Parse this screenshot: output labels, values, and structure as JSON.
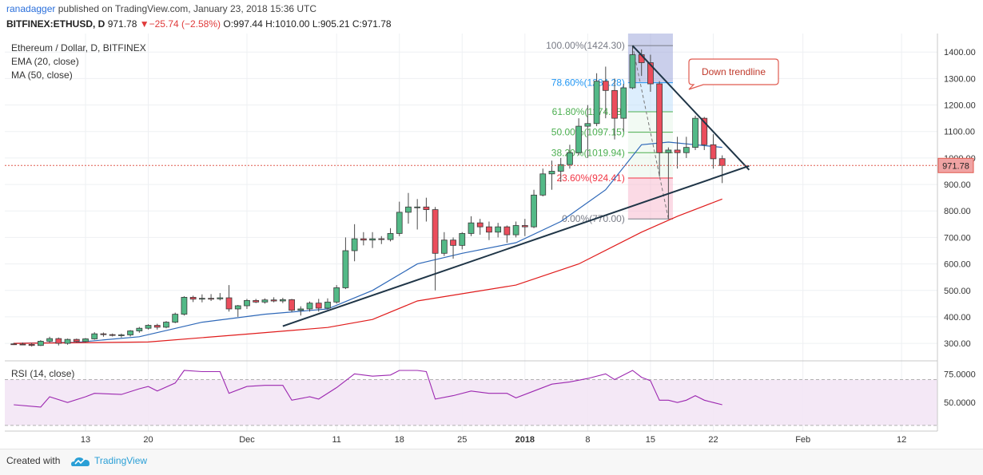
{
  "header": {
    "line1_author": "ranadagger",
    "line1_rest": " published on TradingView.com, January 23, 2018 15:36 UTC",
    "symbol": "BITFINEX:ETHUSD, D",
    "last": "971.78",
    "change_glyph": "▼",
    "change": "−25.74 (−2.58%)",
    "open_label": "O:",
    "open": "997.44",
    "high_label": "H:",
    "high": "1010.00",
    "low_label": "L:",
    "low": "905.21",
    "close_label": "C:",
    "close": "971.78"
  },
  "legend": {
    "title": "Ethereum / Dollar, D, BITFINEX",
    "ema": "EMA (20, close)",
    "ma": "MA (50, close)"
  },
  "colors": {
    "up": "#53b987",
    "down": "#eb4d5c",
    "ema": "#2e68b8",
    "ma": "#e01b1b",
    "rsi": "#9c27b0",
    "trendline": "#1f3547",
    "grid": "#eef0f3"
  },
  "chart_data": {
    "type": "candlestick",
    "title": "Ethereum / Dollar, D, BITFINEX",
    "y_ticks": [
      300,
      400,
      500,
      600,
      700,
      800,
      900,
      1000,
      1100,
      1200,
      1300,
      1400
    ],
    "y_tick_labels": [
      "300.00",
      "400.00",
      "500.00",
      "600.00",
      "700.00",
      "800.00",
      "900.00",
      "1000.00",
      "1100.00",
      "1200.00",
      "1300.00",
      "1400.00"
    ],
    "ylim": [
      240,
      1470
    ],
    "x_ticks": [
      {
        "label": "13",
        "date": "2017-11-13"
      },
      {
        "label": "20",
        "date": "2017-11-20"
      },
      {
        "label": "Dec",
        "date": "2017-12-01"
      },
      {
        "label": "11",
        "date": "2017-12-11"
      },
      {
        "label": "18",
        "date": "2017-12-18"
      },
      {
        "label": "25",
        "date": "2017-12-25"
      },
      {
        "label": "2018",
        "date": "2018-01-01"
      },
      {
        "label": "8",
        "date": "2018-01-08"
      },
      {
        "label": "15",
        "date": "2018-01-15"
      },
      {
        "label": "22",
        "date": "2018-01-22"
      },
      {
        "label": "Feb",
        "date": "2018-02-01"
      },
      {
        "label": "12",
        "date": "2018-02-12"
      }
    ],
    "x_range": [
      "2017-11-04",
      "2018-02-16"
    ],
    "candles": [
      {
        "date": "2017-11-05",
        "o": 298,
        "h": 302,
        "l": 294,
        "c": 297
      },
      {
        "date": "2017-11-06",
        "o": 297,
        "h": 303,
        "l": 293,
        "c": 296
      },
      {
        "date": "2017-11-07",
        "o": 296,
        "h": 301,
        "l": 288,
        "c": 292
      },
      {
        "date": "2017-11-08",
        "o": 292,
        "h": 312,
        "l": 290,
        "c": 308
      },
      {
        "date": "2017-11-09",
        "o": 308,
        "h": 325,
        "l": 302,
        "c": 318
      },
      {
        "date": "2017-11-10",
        "o": 318,
        "h": 322,
        "l": 292,
        "c": 300
      },
      {
        "date": "2017-11-11",
        "o": 300,
        "h": 318,
        "l": 295,
        "c": 315
      },
      {
        "date": "2017-11-12",
        "o": 315,
        "h": 318,
        "l": 303,
        "c": 307
      },
      {
        "date": "2017-11-13",
        "o": 307,
        "h": 320,
        "l": 303,
        "c": 317
      },
      {
        "date": "2017-11-14",
        "o": 317,
        "h": 342,
        "l": 314,
        "c": 336
      },
      {
        "date": "2017-11-15",
        "o": 336,
        "h": 341,
        "l": 325,
        "c": 333
      },
      {
        "date": "2017-11-16",
        "o": 333,
        "h": 337,
        "l": 326,
        "c": 331
      },
      {
        "date": "2017-11-17",
        "o": 331,
        "h": 337,
        "l": 322,
        "c": 332
      },
      {
        "date": "2017-11-18",
        "o": 332,
        "h": 350,
        "l": 326,
        "c": 347
      },
      {
        "date": "2017-11-19",
        "o": 347,
        "h": 362,
        "l": 340,
        "c": 357
      },
      {
        "date": "2017-11-20",
        "o": 357,
        "h": 372,
        "l": 352,
        "c": 368
      },
      {
        "date": "2017-11-21",
        "o": 368,
        "h": 374,
        "l": 352,
        "c": 361
      },
      {
        "date": "2017-11-22",
        "o": 361,
        "h": 384,
        "l": 357,
        "c": 380
      },
      {
        "date": "2017-11-23",
        "o": 380,
        "h": 416,
        "l": 376,
        "c": 410
      },
      {
        "date": "2017-11-24",
        "o": 410,
        "h": 478,
        "l": 405,
        "c": 474
      },
      {
        "date": "2017-11-25",
        "o": 474,
        "h": 480,
        "l": 456,
        "c": 467
      },
      {
        "date": "2017-11-26",
        "o": 467,
        "h": 485,
        "l": 455,
        "c": 470
      },
      {
        "date": "2017-11-27",
        "o": 470,
        "h": 486,
        "l": 460,
        "c": 468
      },
      {
        "date": "2017-11-28",
        "o": 468,
        "h": 490,
        "l": 462,
        "c": 472
      },
      {
        "date": "2017-11-29",
        "o": 472,
        "h": 520,
        "l": 420,
        "c": 430
      },
      {
        "date": "2017-11-30",
        "o": 430,
        "h": 445,
        "l": 400,
        "c": 442
      },
      {
        "date": "2017-12-01",
        "o": 442,
        "h": 468,
        "l": 430,
        "c": 462
      },
      {
        "date": "2017-12-02",
        "o": 462,
        "h": 468,
        "l": 452,
        "c": 456
      },
      {
        "date": "2017-12-03",
        "o": 456,
        "h": 470,
        "l": 450,
        "c": 464
      },
      {
        "date": "2017-12-04",
        "o": 464,
        "h": 474,
        "l": 455,
        "c": 460
      },
      {
        "date": "2017-12-05",
        "o": 460,
        "h": 472,
        "l": 452,
        "c": 465
      },
      {
        "date": "2017-12-06",
        "o": 465,
        "h": 468,
        "l": 418,
        "c": 425
      },
      {
        "date": "2017-12-07",
        "o": 425,
        "h": 440,
        "l": 405,
        "c": 430
      },
      {
        "date": "2017-12-08",
        "o": 430,
        "h": 458,
        "l": 420,
        "c": 452
      },
      {
        "date": "2017-12-09",
        "o": 452,
        "h": 468,
        "l": 420,
        "c": 433
      },
      {
        "date": "2017-12-10",
        "o": 433,
        "h": 470,
        "l": 428,
        "c": 456
      },
      {
        "date": "2017-12-11",
        "o": 456,
        "h": 520,
        "l": 450,
        "c": 510
      },
      {
        "date": "2017-12-12",
        "o": 510,
        "h": 700,
        "l": 505,
        "c": 650
      },
      {
        "date": "2017-12-13",
        "o": 650,
        "h": 750,
        "l": 610,
        "c": 695
      },
      {
        "date": "2017-12-14",
        "o": 695,
        "h": 720,
        "l": 670,
        "c": 690
      },
      {
        "date": "2017-12-15",
        "o": 690,
        "h": 720,
        "l": 660,
        "c": 695
      },
      {
        "date": "2017-12-16",
        "o": 695,
        "h": 705,
        "l": 675,
        "c": 692
      },
      {
        "date": "2017-12-17",
        "o": 692,
        "h": 735,
        "l": 685,
        "c": 715
      },
      {
        "date": "2017-12-18",
        "o": 715,
        "h": 835,
        "l": 705,
        "c": 795
      },
      {
        "date": "2017-12-19",
        "o": 795,
        "h": 868,
        "l": 752,
        "c": 815
      },
      {
        "date": "2017-12-20",
        "o": 815,
        "h": 845,
        "l": 730,
        "c": 815
      },
      {
        "date": "2017-12-21",
        "o": 815,
        "h": 850,
        "l": 760,
        "c": 805
      },
      {
        "date": "2017-12-22",
        "o": 805,
        "h": 815,
        "l": 500,
        "c": 640
      },
      {
        "date": "2017-12-23",
        "o": 640,
        "h": 720,
        "l": 630,
        "c": 690
      },
      {
        "date": "2017-12-24",
        "o": 690,
        "h": 700,
        "l": 620,
        "c": 670
      },
      {
        "date": "2017-12-25",
        "o": 670,
        "h": 720,
        "l": 655,
        "c": 715
      },
      {
        "date": "2017-12-26",
        "o": 715,
        "h": 780,
        "l": 705,
        "c": 755
      },
      {
        "date": "2017-12-27",
        "o": 755,
        "h": 770,
        "l": 710,
        "c": 740
      },
      {
        "date": "2017-12-28",
        "o": 740,
        "h": 760,
        "l": 690,
        "c": 720
      },
      {
        "date": "2017-12-29",
        "o": 720,
        "h": 755,
        "l": 700,
        "c": 740
      },
      {
        "date": "2017-12-30",
        "o": 740,
        "h": 745,
        "l": 680,
        "c": 710
      },
      {
        "date": "2017-12-31",
        "o": 710,
        "h": 760,
        "l": 700,
        "c": 745
      },
      {
        "date": "2018-01-01",
        "o": 745,
        "h": 770,
        "l": 705,
        "c": 740
      },
      {
        "date": "2018-01-02",
        "o": 740,
        "h": 880,
        "l": 735,
        "c": 860
      },
      {
        "date": "2018-01-03",
        "o": 860,
        "h": 960,
        "l": 855,
        "c": 940
      },
      {
        "date": "2018-01-04",
        "o": 940,
        "h": 990,
        "l": 880,
        "c": 950
      },
      {
        "date": "2018-01-05",
        "o": 950,
        "h": 1000,
        "l": 910,
        "c": 975
      },
      {
        "date": "2018-01-06",
        "o": 975,
        "h": 1050,
        "l": 960,
        "c": 1020
      },
      {
        "date": "2018-01-07",
        "o": 1020,
        "h": 1150,
        "l": 1010,
        "c": 1120
      },
      {
        "date": "2018-01-08",
        "o": 1120,
        "h": 1200,
        "l": 1000,
        "c": 1130
      },
      {
        "date": "2018-01-09",
        "o": 1130,
        "h": 1320,
        "l": 1120,
        "c": 1290
      },
      {
        "date": "2018-01-10",
        "o": 1290,
        "h": 1345,
        "l": 1150,
        "c": 1255
      },
      {
        "date": "2018-01-11",
        "o": 1255,
        "h": 1300,
        "l": 1070,
        "c": 1150
      },
      {
        "date": "2018-01-12",
        "o": 1150,
        "h": 1280,
        "l": 1100,
        "c": 1265
      },
      {
        "date": "2018-01-13",
        "o": 1265,
        "h": 1424,
        "l": 1260,
        "c": 1390
      },
      {
        "date": "2018-01-14",
        "o": 1390,
        "h": 1410,
        "l": 1310,
        "c": 1360
      },
      {
        "date": "2018-01-15",
        "o": 1360,
        "h": 1390,
        "l": 1250,
        "c": 1280
      },
      {
        "date": "2018-01-16",
        "o": 1280,
        "h": 1290,
        "l": 930,
        "c": 1020
      },
      {
        "date": "2018-01-17",
        "o": 1020,
        "h": 1040,
        "l": 770,
        "c": 1030
      },
      {
        "date": "2018-01-18",
        "o": 1030,
        "h": 1080,
        "l": 960,
        "c": 1020
      },
      {
        "date": "2018-01-19",
        "o": 1020,
        "h": 1080,
        "l": 1000,
        "c": 1040
      },
      {
        "date": "2018-01-20",
        "o": 1040,
        "h": 1160,
        "l": 1030,
        "c": 1150
      },
      {
        "date": "2018-01-21",
        "o": 1150,
        "h": 1155,
        "l": 1030,
        "c": 1050
      },
      {
        "date": "2018-01-22",
        "o": 1050,
        "h": 1090,
        "l": 960,
        "c": 997
      },
      {
        "date": "2018-01-23",
        "o": 997.44,
        "h": 1010,
        "l": 905.21,
        "c": 971.78
      }
    ],
    "ema_20": [
      [
        "2017-11-05",
        300
      ],
      [
        "2017-11-12",
        304
      ],
      [
        "2017-11-19",
        325
      ],
      [
        "2017-11-26",
        380
      ],
      [
        "2017-12-03",
        410
      ],
      [
        "2017-12-10",
        430
      ],
      [
        "2017-12-15",
        500
      ],
      [
        "2017-12-20",
        600
      ],
      [
        "2017-12-25",
        640
      ],
      [
        "2017-12-31",
        680
      ],
      [
        "2018-01-05",
        760
      ],
      [
        "2018-01-10",
        880
      ],
      [
        "2018-01-14",
        1050
      ],
      [
        "2018-01-17",
        1060
      ],
      [
        "2018-01-20",
        1050
      ],
      [
        "2018-01-23",
        1040
      ]
    ],
    "ma_50": [
      [
        "2017-11-05",
        300
      ],
      [
        "2017-11-20",
        305
      ],
      [
        "2017-12-01",
        335
      ],
      [
        "2017-12-10",
        360
      ],
      [
        "2017-12-15",
        390
      ],
      [
        "2017-12-20",
        460
      ],
      [
        "2017-12-31",
        520
      ],
      [
        "2018-01-07",
        600
      ],
      [
        "2018-01-14",
        720
      ],
      [
        "2018-01-18",
        780
      ],
      [
        "2018-01-23",
        845
      ]
    ],
    "fibonacci": [
      {
        "label": "100.00%(1424.30)",
        "value": 1424.3,
        "color": "#787b86"
      },
      {
        "label": "78.60%(1284.28)",
        "value": 1284.28,
        "color": "#2196f3"
      },
      {
        "label": "61.80%(1174.38)",
        "value": 1174.38,
        "color": "#4caf50"
      },
      {
        "label": "50.00%(1097.15)",
        "value": 1097.15,
        "color": "#4caf50"
      },
      {
        "label": "38.20%(1019.94)",
        "value": 1019.94,
        "color": "#4caf50"
      },
      {
        "label": "23.60%(924.41)",
        "value": 924.41,
        "color": "#f23645"
      },
      {
        "label": "0.00%(770.00)",
        "value": 770.0,
        "color": "#787b86"
      }
    ],
    "fib_range": {
      "start": "2018-01-13",
      "end": "2018-01-17",
      "high": 1424.3,
      "low": 770.0
    },
    "trendline_up": {
      "from": [
        "2017-12-05",
        365
      ],
      "to": [
        "2018-01-26",
        970
      ]
    },
    "trendline_down": {
      "from": [
        "2018-01-13",
        1424.3
      ],
      "to": [
        "2018-01-26",
        955
      ]
    },
    "current_price": 971.78,
    "current_price_label": "971.78",
    "annotation": "Down trendline",
    "rsi": {
      "label": "RSI (14, close)",
      "y_ticks": [
        50,
        75
      ],
      "y_tick_labels": [
        "50.0000",
        "75.0000"
      ],
      "bands": [
        30,
        70
      ],
      "ylim": [
        25,
        85
      ],
      "values": [
        [
          "2017-11-05",
          48
        ],
        [
          "2017-11-08",
          46
        ],
        [
          "2017-11-09",
          55
        ],
        [
          "2017-11-11",
          50
        ],
        [
          "2017-11-13",
          55
        ],
        [
          "2017-11-14",
          58
        ],
        [
          "2017-11-17",
          57
        ],
        [
          "2017-11-19",
          62
        ],
        [
          "2017-11-20",
          64
        ],
        [
          "2017-11-21",
          60
        ],
        [
          "2017-11-23",
          67
        ],
        [
          "2017-11-24",
          78
        ],
        [
          "2017-11-26",
          77
        ],
        [
          "2017-11-28",
          77
        ],
        [
          "2017-11-29",
          58
        ],
        [
          "2017-12-01",
          64
        ],
        [
          "2017-12-03",
          65
        ],
        [
          "2017-12-05",
          65
        ],
        [
          "2017-12-06",
          52
        ],
        [
          "2017-12-08",
          55
        ],
        [
          "2017-12-09",
          53
        ],
        [
          "2017-12-11",
          63
        ],
        [
          "2017-12-13",
          75
        ],
        [
          "2017-12-15",
          73
        ],
        [
          "2017-12-17",
          74
        ],
        [
          "2017-12-18",
          78
        ],
        [
          "2017-12-20",
          78
        ],
        [
          "2017-12-21",
          77
        ],
        [
          "2017-12-22",
          53
        ],
        [
          "2017-12-24",
          56
        ],
        [
          "2017-12-26",
          60
        ],
        [
          "2017-12-28",
          58
        ],
        [
          "2017-12-30",
          58
        ],
        [
          "2017-12-31",
          54
        ],
        [
          "2018-01-02",
          60
        ],
        [
          "2018-01-04",
          66
        ],
        [
          "2018-01-06",
          68
        ],
        [
          "2018-01-08",
          71
        ],
        [
          "2018-01-10",
          75
        ],
        [
          "2018-01-11",
          70
        ],
        [
          "2018-01-13",
          78
        ],
        [
          "2018-01-14",
          72
        ],
        [
          "2018-01-15",
          69
        ],
        [
          "2018-01-16",
          52
        ],
        [
          "2018-01-17",
          52
        ],
        [
          "2018-01-18",
          50
        ],
        [
          "2018-01-19",
          52
        ],
        [
          "2018-01-20",
          56
        ],
        [
          "2018-01-21",
          52
        ],
        [
          "2018-01-22",
          50
        ],
        [
          "2018-01-23",
          48
        ]
      ]
    }
  },
  "footer": {
    "created_with": "Created with",
    "brand": "TradingView"
  }
}
